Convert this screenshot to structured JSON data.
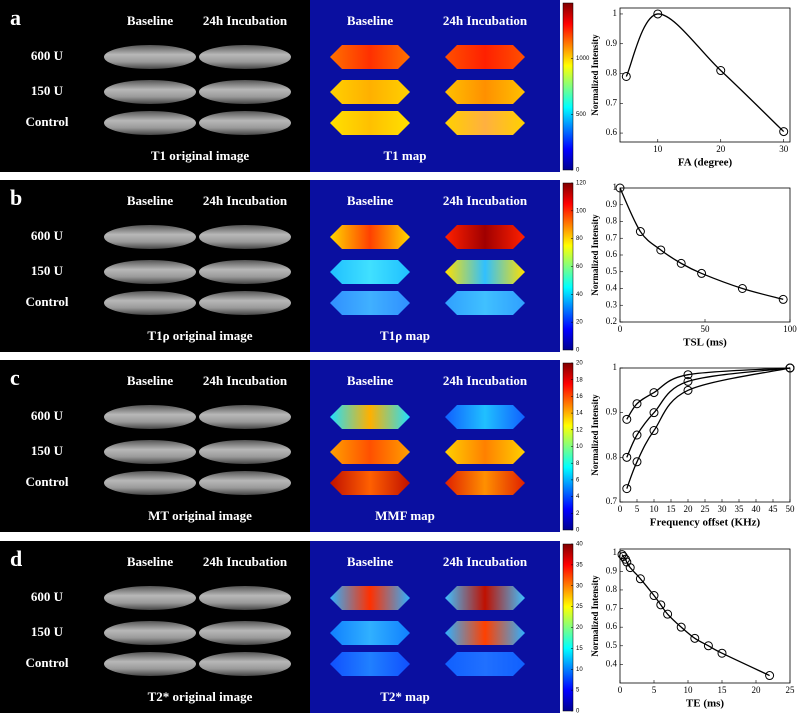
{
  "panels": [
    {
      "letter": "a",
      "columns": [
        "Baseline",
        "24h Incubation"
      ],
      "rows": [
        "600 U",
        "150 U",
        "Control"
      ],
      "image_caption": "T1 original image",
      "map_columns": [
        "Baseline",
        "24h Incubation"
      ],
      "map_caption": "T1 map",
      "colorbar": {
        "lim": [
          0,
          1500
        ],
        "ticks": [
          0,
          500,
          1000
        ]
      }
    },
    {
      "letter": "b",
      "columns": [
        "Baseline",
        "24h Incubation"
      ],
      "rows": [
        "600 U",
        "150 U",
        "Control"
      ],
      "image_caption": "T1ρ original image",
      "map_columns": [
        "Baseline",
        "24h Incubation"
      ],
      "map_caption": "T1ρ map",
      "colorbar": {
        "lim": [
          0,
          120
        ],
        "ticks": [
          0,
          20,
          40,
          60,
          80,
          100,
          120
        ]
      }
    },
    {
      "letter": "c",
      "columns": [
        "Baseline",
        "24h Incubation"
      ],
      "rows": [
        "600 U",
        "150 U",
        "Control"
      ],
      "image_caption": "MT original image",
      "map_columns": [
        "Baseline",
        "24h Incubation"
      ],
      "map_caption": "MMF map",
      "colorbar": {
        "lim": [
          0,
          20
        ],
        "ticks": [
          0,
          2,
          4,
          6,
          8,
          10,
          12,
          14,
          16,
          18,
          20
        ]
      }
    },
    {
      "letter": "d",
      "columns": [
        "Baseline",
        "24h Incubation"
      ],
      "rows": [
        "600 U",
        "150 U",
        "Control"
      ],
      "image_caption": "T2* original image",
      "map_columns": [
        "Baseline",
        "24h Incubation"
      ],
      "map_caption": "T2* map",
      "colorbar": {
        "lim": [
          0,
          40
        ],
        "ticks": [
          0,
          5,
          10,
          15,
          20,
          25,
          30,
          35,
          40
        ]
      }
    }
  ],
  "chart_data": [
    {
      "type": "line",
      "xlabel": "FA (degree)",
      "ylabel": "Normalized Intensity",
      "x": [
        5,
        10,
        20,
        30
      ],
      "series": [
        {
          "color": "#000000",
          "values": [
            0.79,
            1.0,
            0.81,
            0.605
          ]
        }
      ],
      "xlim": [
        4,
        31
      ],
      "ylim": [
        0.57,
        1.02
      ],
      "xticks": [
        10,
        20,
        30
      ],
      "yticks": [
        0.6,
        0.7,
        0.8,
        0.9,
        1
      ]
    },
    {
      "type": "line",
      "xlabel": "TSL (ms)",
      "ylabel": "Normalized Intensity",
      "x": [
        0,
        12,
        24,
        36,
        48,
        72,
        96
      ],
      "series": [
        {
          "color": "#000000",
          "values": [
            1.0,
            0.74,
            0.63,
            0.55,
            0.49,
            0.4,
            0.335
          ]
        }
      ],
      "xlim": [
        0,
        100
      ],
      "ylim": [
        0.2,
        1
      ],
      "xticks": [
        0,
        50,
        100
      ],
      "yticks": [
        0.2,
        0.3,
        0.4,
        0.5,
        0.6,
        0.7,
        0.8,
        0.9,
        1
      ]
    },
    {
      "type": "line",
      "xlabel": "Frequency offset (KHz)",
      "ylabel": "Normalized Intensity",
      "x": [
        2,
        5,
        10,
        20,
        50
      ],
      "series": [
        {
          "color": "#000000",
          "values": [
            0.885,
            0.92,
            0.945,
            0.985,
            1.0
          ]
        },
        {
          "color": "#000000",
          "values": [
            0.8,
            0.85,
            0.9,
            0.97,
            1.0
          ]
        },
        {
          "color": "#000000",
          "values": [
            0.73,
            0.79,
            0.86,
            0.95,
            1.0
          ]
        }
      ],
      "xlim": [
        0,
        50
      ],
      "ylim": [
        0.7,
        1
      ],
      "xticks": [
        0,
        5,
        10,
        15,
        20,
        25,
        30,
        35,
        40,
        45,
        50
      ],
      "yticks": [
        0.7,
        0.8,
        0.9,
        1
      ]
    },
    {
      "type": "line",
      "xlabel": "TE (ms)",
      "ylabel": "Normalized Intensity",
      "x": [
        0.3,
        0.5,
        0.8,
        1,
        1.5,
        3,
        5,
        6,
        7,
        9,
        11,
        13,
        15,
        22
      ],
      "series": [
        {
          "color": "#000000",
          "values": [
            0.99,
            0.98,
            0.965,
            0.95,
            0.92,
            0.86,
            0.77,
            0.72,
            0.67,
            0.6,
            0.54,
            0.5,
            0.46,
            0.34
          ]
        }
      ],
      "xlim": [
        0,
        25
      ],
      "ylim": [
        0.3,
        1.02
      ],
      "xticks": [
        0,
        5,
        10,
        15,
        20,
        25
      ],
      "yticks": [
        0.4,
        0.5,
        0.6,
        0.7,
        0.8,
        0.9,
        1
      ]
    }
  ]
}
